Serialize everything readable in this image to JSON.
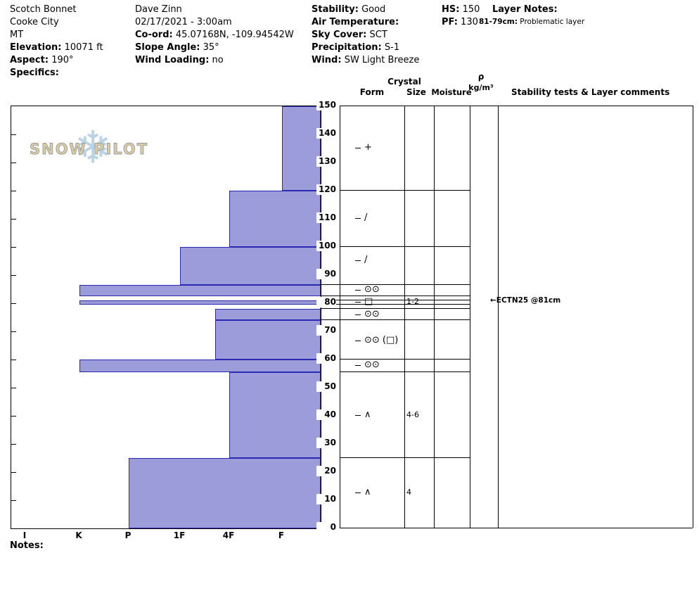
{
  "header": {
    "location": {
      "name": "Scotch Bonnet",
      "city": "Cooke City",
      "state": "MT",
      "elevation_label": "Elevation:",
      "elevation_value": "10071 ft",
      "aspect_label": "Aspect:",
      "aspect_value": "190°",
      "specifics_label": "Specifics:"
    },
    "observer": {
      "name": "Dave Zinn",
      "datetime": "02/17/2021 - 3:00am",
      "coord_label": "Co-ord:",
      "coord_value": "45.07168N, -109.94542W",
      "slope_angle_label": "Slope Angle:",
      "slope_angle_value": "35°",
      "wind_loading_label": "Wind Loading:",
      "wind_loading_value": "no"
    },
    "conditions": {
      "stability_label": "Stability:",
      "stability_value": "Good",
      "air_temp_label": "Air Temperature:",
      "air_temp_value": "",
      "sky_label": "Sky Cover:",
      "sky_value": "SCT",
      "precip_label": "Precipitation:",
      "precip_value": "S-1",
      "wind_label": "Wind:",
      "wind_value": "SW Light Breeze"
    },
    "snowpack": {
      "hs_label": "HS:",
      "hs_value": "150",
      "pf_label": "PF:",
      "pf_value": "130"
    },
    "layer_notes": {
      "title": "Layer Notes:",
      "entry_depth": "81-79cm:",
      "entry_text": "Problematic layer"
    }
  },
  "logo": {
    "snowflake_icon": "❄",
    "text": "SNOW PILOT"
  },
  "chart_data": {
    "type": "bar",
    "title": "Snow hardness profile",
    "orientation": "horizontal-depth",
    "hardness_scale": [
      "I",
      "K",
      "P",
      "1F",
      "4F",
      "F"
    ],
    "depth_axis": {
      "unit": "cm",
      "min": 0,
      "max": 150,
      "tick_interval": 10
    },
    "bar_color": "#9c9cdb",
    "bar_border_color": "#2a2ab0",
    "layers": [
      {
        "top_cm": 150,
        "bottom_cm": 120,
        "hardness": "F"
      },
      {
        "top_cm": 120,
        "bottom_cm": 100,
        "hardness": "4F"
      },
      {
        "top_cm": 100,
        "bottom_cm": 86.5,
        "hardness": "1F"
      },
      {
        "top_cm": 86.5,
        "bottom_cm": 82.5,
        "hardness": "K"
      },
      {
        "top_cm": 82.5,
        "bottom_cm": 81,
        "hardness": null
      },
      {
        "top_cm": 81,
        "bottom_cm": 79.5,
        "hardness": "K"
      },
      {
        "top_cm": 79.5,
        "bottom_cm": 78,
        "hardness": null
      },
      {
        "top_cm": 78,
        "bottom_cm": 74,
        "hardness": "4F+"
      },
      {
        "top_cm": 74,
        "bottom_cm": 60,
        "hardness": "4F+"
      },
      {
        "top_cm": 60,
        "bottom_cm": 55.5,
        "hardness": "K"
      },
      {
        "top_cm": 55.5,
        "bottom_cm": 25,
        "hardness": "4F"
      },
      {
        "top_cm": 25,
        "bottom_cm": 0,
        "hardness": "P"
      }
    ]
  },
  "columns": {
    "crystal_header": "Crystal",
    "form_header": "Form",
    "size_header": "Size",
    "moisture_header": "Moisture",
    "density_symbol": "ρ",
    "density_units": "kg/m³",
    "comments_header": "Stability tests & Layer comments",
    "crystal_rows": [
      {
        "depth_cm": 135,
        "form": "+",
        "size": ""
      },
      {
        "depth_cm": 110,
        "form": "/",
        "size": ""
      },
      {
        "depth_cm": 95,
        "form": "/",
        "size": ""
      },
      {
        "depth_cm": 84.5,
        "form": "⊙⊙",
        "size": ""
      },
      {
        "depth_cm": 80.25,
        "form": "□",
        "size": "1-2"
      },
      {
        "depth_cm": 75.75,
        "form": "⊙⊙",
        "size": ""
      },
      {
        "depth_cm": 66.5,
        "form": "⊙⊙ (□)",
        "size": ""
      },
      {
        "depth_cm": 57.75,
        "form": "⊙⊙",
        "size": ""
      },
      {
        "depth_cm": 40,
        "form": "∧",
        "size": "4-6"
      },
      {
        "depth_cm": 12.5,
        "form": "∧",
        "size": "4"
      }
    ],
    "boundary_depths_cm": [
      120,
      100,
      86.5,
      82.5,
      81,
      79.5,
      78,
      74,
      60,
      55.5,
      25
    ],
    "connector_depths_cm": [
      86.5,
      82.5,
      81,
      79.5,
      78,
      74
    ],
    "stability_test": {
      "arrow_icon": "←",
      "label": "ECTN25 @81cm",
      "depth_cm": 80.5
    }
  },
  "notes_label": "Notes:"
}
